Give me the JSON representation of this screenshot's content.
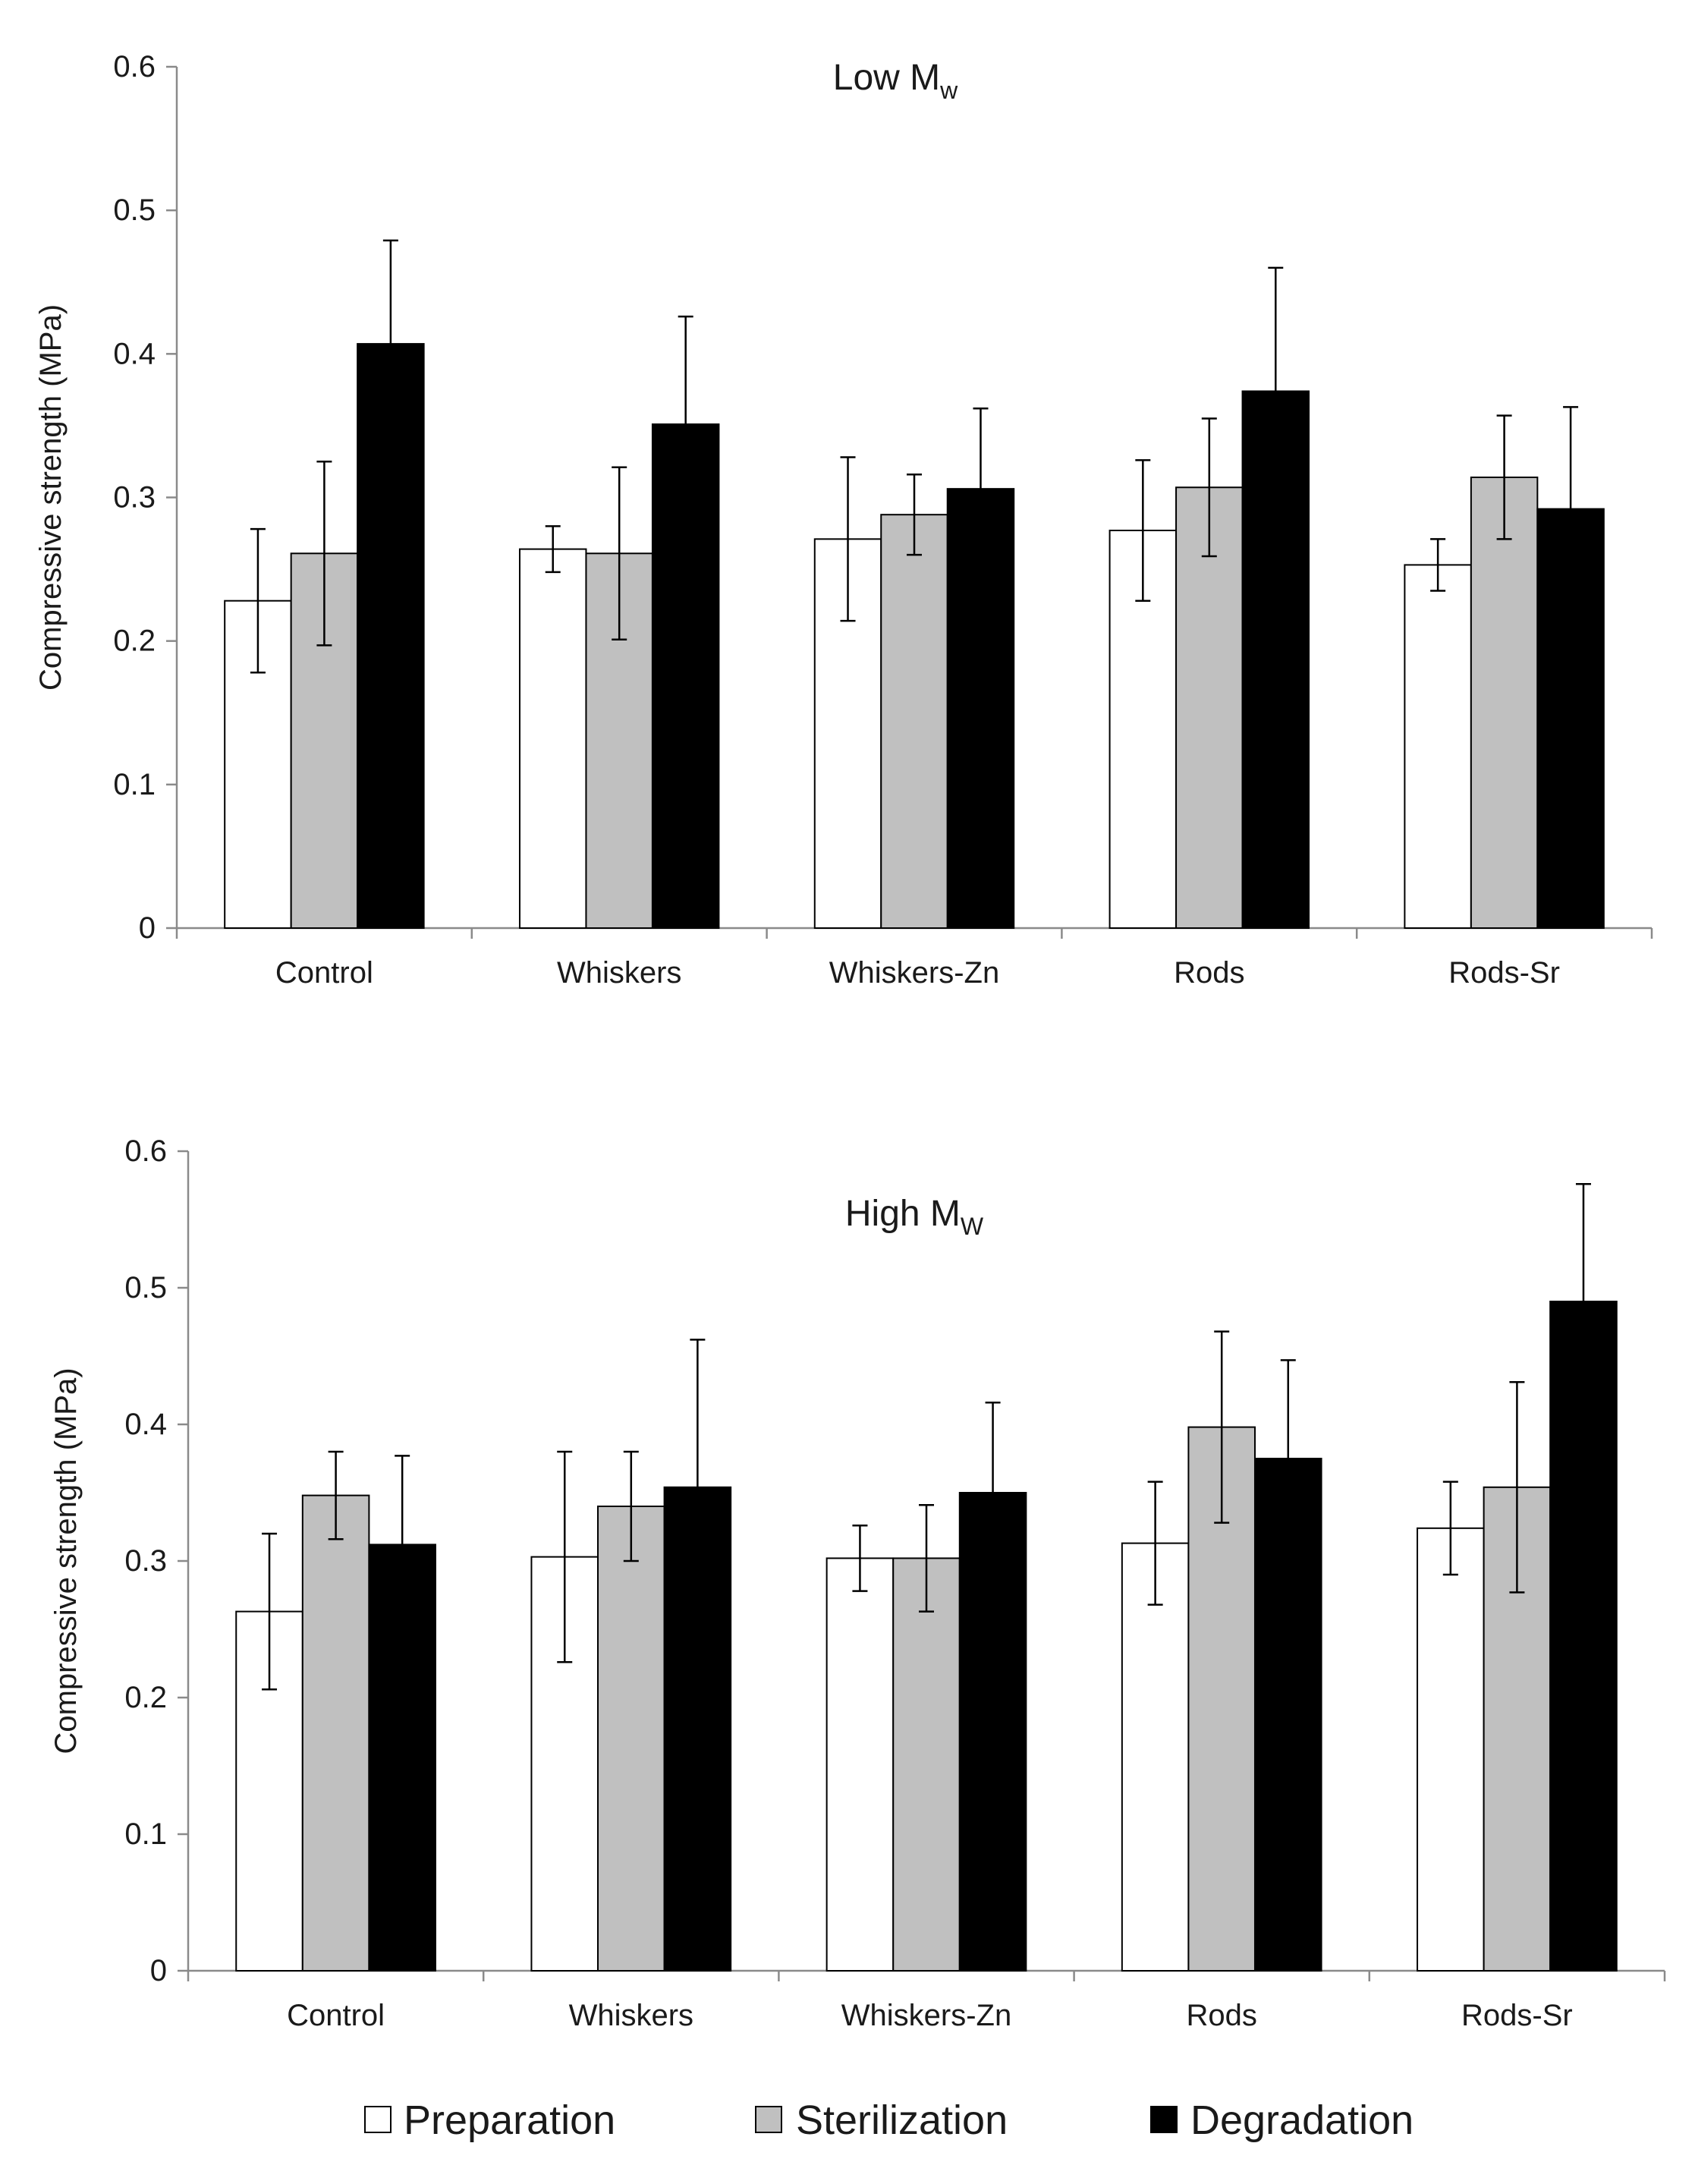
{
  "colors": {
    "Preparation": "#ffffff",
    "Sterilization": "#c0c0c0",
    "Degradation": "#000000",
    "axis": "#8a8a8a"
  },
  "legend": {
    "items": [
      {
        "label": "Preparation",
        "color": "#ffffff"
      },
      {
        "label": "Sterilization",
        "color": "#c0c0c0"
      },
      {
        "label": "Degradation",
        "color": "#000000"
      }
    ]
  },
  "chart_data": [
    {
      "type": "bar",
      "title": "Low M",
      "title_subscript": "w",
      "xlabel": "",
      "ylabel": "Compressive strength (MPa)",
      "ylim": [
        0,
        0.6
      ],
      "yticks": [
        "0",
        "0.1",
        "0.2",
        "0.3",
        "0.4",
        "0.5",
        "0.6"
      ],
      "categories": [
        "Control",
        "Whiskers",
        "Whiskers-Zn",
        "Rods",
        "Rods-Sr"
      ],
      "series": [
        {
          "name": "Preparation",
          "values": [
            0.228,
            0.264,
            0.271,
            0.277,
            0.253
          ],
          "errors": [
            0.05,
            0.016,
            0.057,
            0.049,
            0.018
          ]
        },
        {
          "name": "Sterilization",
          "values": [
            0.261,
            0.261,
            0.288,
            0.307,
            0.314
          ],
          "errors": [
            0.064,
            0.06,
            0.028,
            0.048,
            0.043
          ]
        },
        {
          "name": "Degradation",
          "values": [
            0.407,
            0.351,
            0.306,
            0.374,
            0.292
          ],
          "errors": [
            0.072,
            0.075,
            0.056,
            0.086,
            0.071
          ]
        }
      ]
    },
    {
      "type": "bar",
      "title": "High M",
      "title_subscript": "W",
      "xlabel": "",
      "ylabel": "Compressive strength (MPa)",
      "ylim": [
        0,
        0.6
      ],
      "yticks": [
        "0",
        "0.1",
        "0.2",
        "0.3",
        "0.4",
        "0.5",
        "0.6"
      ],
      "categories": [
        "Control",
        "Whiskers",
        "Whiskers-Zn",
        "Rods",
        "Rods-Sr"
      ],
      "series": [
        {
          "name": "Preparation",
          "values": [
            0.263,
            0.303,
            0.302,
            0.313,
            0.324
          ],
          "errors": [
            0.057,
            0.077,
            0.024,
            0.045,
            0.034
          ]
        },
        {
          "name": "Sterilization",
          "values": [
            0.348,
            0.34,
            0.302,
            0.398,
            0.354
          ],
          "errors": [
            0.032,
            0.04,
            0.039,
            0.07,
            0.077
          ]
        },
        {
          "name": "Degradation",
          "values": [
            0.312,
            0.354,
            0.35,
            0.375,
            0.49
          ],
          "errors": [
            0.065,
            0.108,
            0.066,
            0.072,
            0.086
          ]
        }
      ]
    }
  ]
}
